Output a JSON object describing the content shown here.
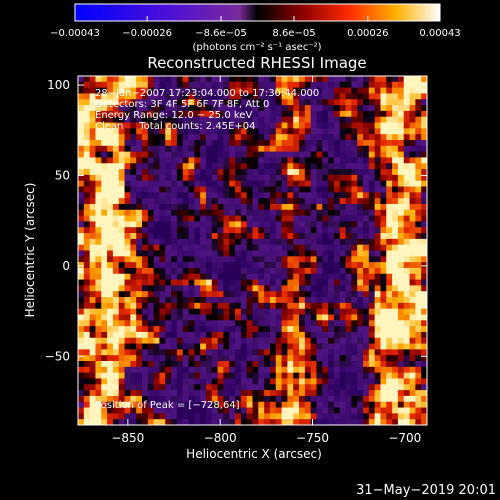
{
  "chart_data": {
    "type": "heatmap",
    "title": "Reconstructed RHESSI Image",
    "xlabel": "Heliocentric X (arcsec)",
    "ylabel": "Heliocentric Y (arcsec)",
    "xlim": [
      -877,
      -688
    ],
    "ylim": [
      -88,
      105
    ],
    "x_ticks": [
      -850,
      -800,
      -750,
      -700
    ],
    "x_tick_labels": [
      "−850",
      "−800",
      "−750",
      "−700"
    ],
    "y_ticks": [
      -50,
      0,
      50,
      100
    ],
    "y_tick_labels": [
      "−50",
      "0",
      "50",
      "100"
    ],
    "colorbar": {
      "range": [
        -0.00043,
        0.00043
      ],
      "ticks": [
        -0.00043,
        -0.00026,
        -8.6e-05,
        8.6e-05,
        0.00026,
        0.00043
      ],
      "tick_labels": [
        "−0.00043",
        "−0.00026",
        "−8.6e−05",
        "8.6e−05",
        "0.00026",
        "0.00043"
      ],
      "unit_label": "(photons cm⁻² s⁻¹ asec⁻²)"
    },
    "annotations": [
      "28−Jan−2007 17:23:04.000 to 17:30:44.000",
      "Detectors: 3F 4F 5F 6F 7F 8F, Att 0",
      "Energy Range: 12.0 − 25.0 keV",
      "Clean     Total counts: 2.45E+04"
    ],
    "peak_label": "Position of Peak = [−728,64]",
    "footer_date": "31−May−2019 20:01",
    "grid": false
  }
}
